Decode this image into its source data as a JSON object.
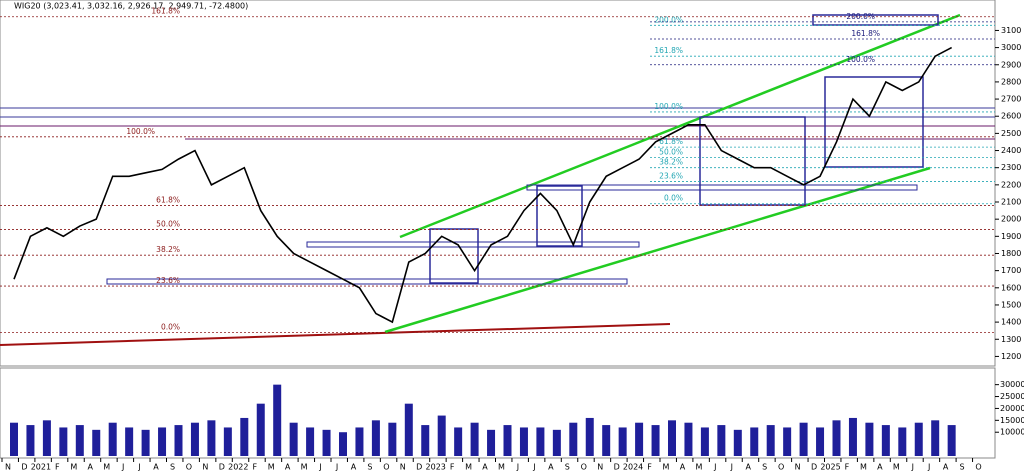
{
  "chart_data": {
    "type": "line",
    "title": "WIG20 (3,023.41, 3,032.16, 2,926.17, 2,949.71, -72.4800)",
    "categories": [
      "N",
      "D",
      "2021",
      "F",
      "M",
      "A",
      "M",
      "J",
      "J",
      "A",
      "S",
      "O",
      "N",
      "D",
      "2022",
      "F",
      "M",
      "A",
      "M",
      "J",
      "J",
      "A",
      "S",
      "O",
      "N",
      "D",
      "2023",
      "F",
      "M",
      "A",
      "M",
      "J",
      "J",
      "A",
      "S",
      "O",
      "N",
      "D",
      "2024",
      "F",
      "M",
      "A",
      "M",
      "J",
      "J",
      "A",
      "S",
      "O",
      "N",
      "D",
      "2025",
      "F",
      "M",
      "A",
      "M",
      "J",
      "J",
      "A",
      "S",
      "O"
    ],
    "series": [
      {
        "color": "#000000",
        "values": [
          1650,
          1900,
          1950,
          1900,
          1960,
          2000,
          2250,
          2250,
          2270,
          2290,
          2350,
          2400,
          2200,
          2250,
          2300,
          2050,
          1900,
          1800,
          1750,
          1700,
          1650,
          1600,
          1450,
          1400,
          1750,
          1800,
          1900,
          1850,
          1700,
          1850,
          1900,
          2050,
          2150,
          2050,
          1850,
          2100,
          2250,
          2300,
          2350,
          2450,
          2500,
          2550,
          2550,
          2400,
          2350,
          2300,
          2300,
          2250,
          2200,
          2250,
          2450,
          2700,
          2600,
          2800,
          2750,
          2800,
          2950,
          3000,
          null,
          null
        ]
      }
    ],
    "ylim": [
      1150,
      3190
    ],
    "yticks": [
      1200,
      1300,
      1400,
      1500,
      1600,
      1700,
      1800,
      1900,
      2000,
      2100,
      2200,
      2300,
      2400,
      2500,
      2600,
      2700,
      2800,
      2900,
      3000,
      3100
    ],
    "volume": {
      "type": "bar",
      "color": "#1f1f9a",
      "values": [
        14000,
        13000,
        15000,
        12000,
        13000,
        11000,
        14000,
        12000,
        11000,
        12000,
        13000,
        14000,
        15000,
        12000,
        16000,
        22000,
        30000,
        14000,
        12000,
        11000,
        10000,
        12000,
        15000,
        14000,
        22000,
        13000,
        17000,
        12000,
        14000,
        11000,
        13000,
        12000,
        12000,
        11000,
        14000,
        16000,
        13000,
        12000,
        14000,
        13000,
        15000,
        14000,
        12000,
        13000,
        11000,
        12000,
        13000,
        12000,
        14000,
        12000,
        15000,
        16000,
        14000,
        13000,
        12000,
        14000,
        15000,
        13000,
        null,
        null
      ],
      "ylim": [
        0,
        37000
      ],
      "yticks": [
        10000,
        15000,
        20000,
        25000,
        30000
      ]
    },
    "fib_sets": [
      {
        "color": "#8b1a1a",
        "levels": [
          {
            "label": "161.8%",
            "value": 3180
          },
          {
            "label": "100.0%",
            "value": 2480
          },
          {
            "label": "61.8%",
            "value": 2080
          },
          {
            "label": "50.0%",
            "value": 1940
          },
          {
            "label": "38.2%",
            "value": 1790
          },
          {
            "label": "23.6%",
            "value": 1610
          },
          {
            "label": "0.0%",
            "value": 1340
          }
        ]
      },
      {
        "color": "#22a6b3",
        "levels": [
          {
            "label": "200.0%",
            "value": 3130
          },
          {
            "label": "161.8%",
            "value": 2950
          },
          {
            "label": "100.0%",
            "value": 2625
          },
          {
            "label": "61.8%",
            "value": 2420
          },
          {
            "label": "50.0%",
            "value": 2360
          },
          {
            "label": "38.2%",
            "value": 2300
          },
          {
            "label": "23.6%",
            "value": 2220
          },
          {
            "label": "0.0%",
            "value": 2090
          }
        ]
      },
      {
        "color": "#1a1a7a",
        "levels": [
          {
            "label": "200.0%",
            "value": 3150
          },
          {
            "label": "161.8%",
            "value": 3050
          },
          {
            "label": "100.0%",
            "value": 2900
          }
        ]
      }
    ]
  }
}
